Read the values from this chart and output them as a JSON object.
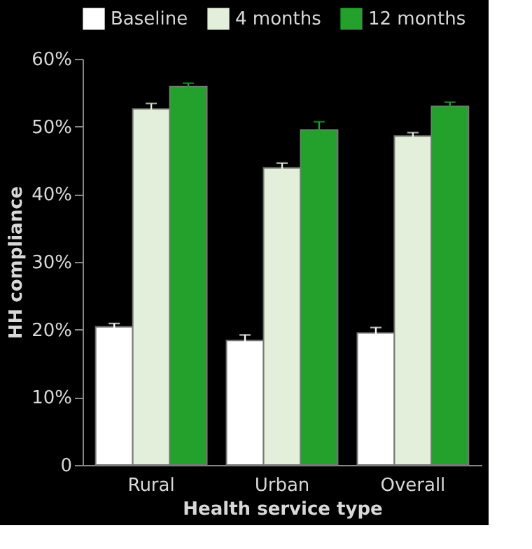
{
  "chart_data": {
    "type": "bar",
    "xlabel": "Health service type",
    "ylabel": "HH compliance",
    "categories": [
      "Rural",
      "Urban",
      "Overall"
    ],
    "series": [
      {
        "name": "Baseline",
        "color": "#ffffff",
        "values": [
          20.4,
          18.4,
          19.5
        ],
        "errors": [
          0.5,
          0.8,
          0.8
        ]
      },
      {
        "name": "4 months",
        "color": "#e3eedb",
        "values": [
          52.6,
          43.9,
          48.6
        ],
        "errors": [
          0.8,
          0.7,
          0.5
        ]
      },
      {
        "name": "12 months",
        "color": "#24a02c",
        "values": [
          55.9,
          49.5,
          53.0
        ],
        "errors": [
          0.5,
          1.2,
          0.6
        ]
      }
    ],
    "ylim": [
      0,
      60
    ],
    "yticks": [
      0,
      {
        "value": 10,
        "label": "10%"
      },
      {
        "value": 20,
        "label": "20%"
      },
      {
        "value": 30,
        "label": "30%"
      },
      {
        "value": 40,
        "label": "40%"
      },
      {
        "value": 50,
        "label": "50%"
      },
      {
        "value": 60,
        "label": "60%"
      }
    ],
    "legend": "top",
    "grid": false
  }
}
